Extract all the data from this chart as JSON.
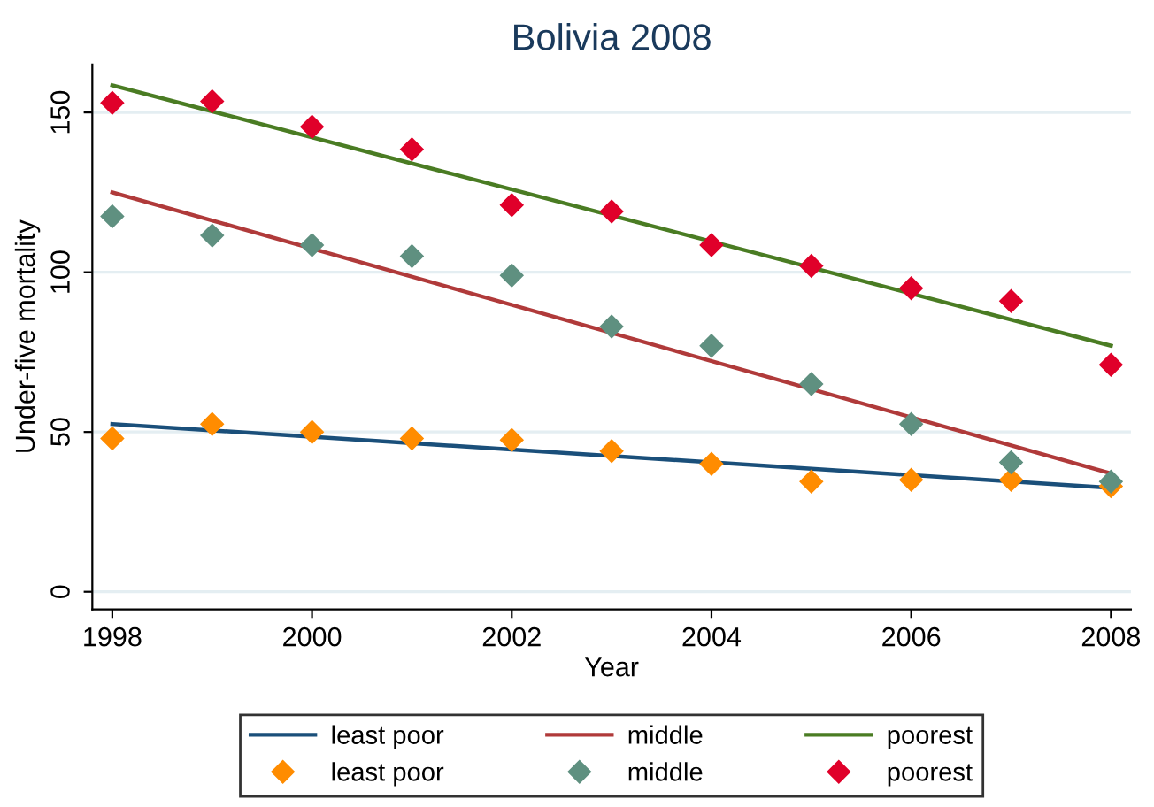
{
  "chart_data": {
    "type": "line",
    "title": "Bolivia 2008",
    "xlabel": "Year",
    "ylabel": "Under-five mortality",
    "xlim": [
      1997.8,
      2008.2
    ],
    "xticks": [
      1998,
      2000,
      2002,
      2004,
      2006,
      2008
    ],
    "ylim": [
      -5.5,
      165
    ],
    "yticks": [
      0,
      50,
      100,
      150
    ],
    "grid": "y",
    "legend": "bottom",
    "series": [
      {
        "name": "least poor",
        "color": "#1a4f7a",
        "x": [
          1998,
          2008
        ],
        "values": [
          52.5,
          32.5
        ]
      },
      {
        "name": "middle",
        "color": "#b03a3a",
        "x": [
          1998,
          2008
        ],
        "values": [
          125,
          37
        ]
      },
      {
        "name": "poorest",
        "color": "#4a7c23",
        "x": [
          1998,
          2008
        ],
        "values": [
          158.5,
          77
        ]
      },
      {
        "name": "least poor",
        "type": "scatter",
        "marker": "diamond",
        "color": "#ff8c00",
        "x": [
          1998,
          1999,
          2000,
          2001,
          2002,
          2003,
          2004,
          2005,
          2006,
          2007,
          2008
        ],
        "values": [
          48,
          52.5,
          50,
          48,
          47.5,
          44,
          40,
          34.5,
          35,
          35,
          33
        ]
      },
      {
        "name": "middle",
        "type": "scatter",
        "marker": "diamond",
        "color": "#5f9080",
        "x": [
          1998,
          1999,
          2000,
          2001,
          2002,
          2003,
          2004,
          2005,
          2006,
          2007,
          2008
        ],
        "values": [
          117.5,
          111.5,
          108.5,
          105,
          99,
          83,
          77,
          65,
          52.5,
          40.5,
          34.5
        ]
      },
      {
        "name": "poorest",
        "type": "scatter",
        "marker": "diamond",
        "color": "#e0002a",
        "x": [
          1998,
          1999,
          2000,
          2001,
          2002,
          2003,
          2004,
          2005,
          2006,
          2007,
          2008
        ],
        "values": [
          153,
          153.5,
          145.5,
          138.5,
          121,
          119,
          108.5,
          102,
          95,
          91,
          71
        ]
      }
    ]
  }
}
